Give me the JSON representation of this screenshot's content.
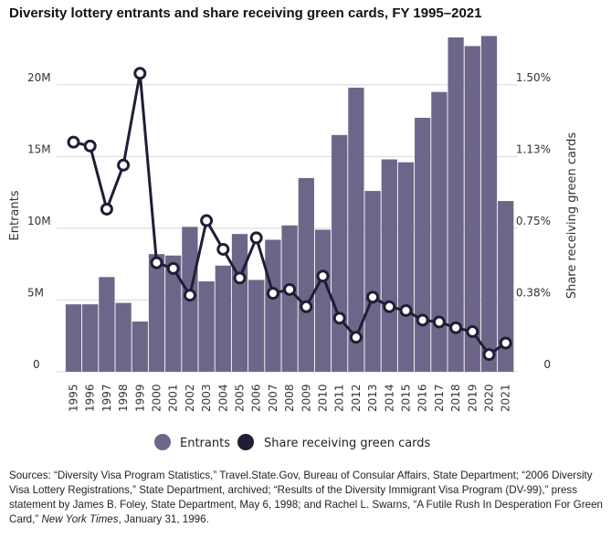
{
  "chart_data": {
    "type": "bar",
    "title": "Diversity lottery entrants and share receiving green cards, FY 1995–2021",
    "categories": [
      "1995",
      "1996",
      "1997",
      "1998",
      "1999",
      "2000",
      "2001",
      "2002",
      "2003",
      "2004",
      "2005",
      "2006",
      "2007",
      "2008",
      "2009",
      "2010",
      "2011",
      "2012",
      "2013",
      "2014",
      "2015",
      "2016",
      "2017",
      "2018",
      "2019",
      "2020",
      "2021"
    ],
    "ylabel": "Entrants",
    "y2label": "Share receiving green cards",
    "ylim": [
      0,
      24000000
    ],
    "y2lim": [
      0,
      1.8
    ],
    "yticks": [
      0,
      5000000,
      10000000,
      15000000,
      20000000
    ],
    "ytick_labels": [
      "0",
      "5M",
      "10M",
      "15M",
      "20M"
    ],
    "y2ticks": [
      0,
      0.375,
      0.75,
      1.125,
      1.5
    ],
    "y2tick_labels": [
      "0",
      "0.38%",
      "0.75%",
      "1.13%",
      "1.50%"
    ],
    "grid": true,
    "legend_position": "bottom",
    "series": [
      {
        "name": "Entrants",
        "type": "bar",
        "color": "#6e6689",
        "axis": "left",
        "values": [
          4700000,
          4700000,
          6600000,
          4800000,
          3500000,
          8200000,
          8100000,
          10100000,
          6300000,
          7400000,
          9600000,
          6400000,
          9200000,
          10200000,
          13500000,
          9900000,
          16500000,
          19800000,
          12600000,
          14800000,
          14600000,
          17700000,
          19500000,
          23300000,
          22700000,
          23400000,
          11900000
        ]
      },
      {
        "name": "Share receiving green cards",
        "type": "line",
        "color": "#231c35",
        "axis": "right",
        "values": [
          1.2,
          1.18,
          0.85,
          1.08,
          1.56,
          0.57,
          0.54,
          0.4,
          0.79,
          0.64,
          0.49,
          0.7,
          0.41,
          0.43,
          0.34,
          0.5,
          0.28,
          0.18,
          0.39,
          0.34,
          0.32,
          0.27,
          0.26,
          0.23,
          0.21,
          0.09,
          0.15
        ]
      }
    ]
  },
  "source": {
    "prefix": "Sources: “Diversity Visa Program Statistics,” Travel.State.Gov, Bureau of Consular Affairs, State Department; “2006 Diversity Visa Lottery Registrations,” State Department, archived; “Results of the Diversity Immigrant Visa Program (DV-99),” press statement by James B. Foley, State Department, May 6, 1998; and Rachel L. Swarns, “A Futile Rush In Desperation For Green Card,” ",
    "publication": "New York Times",
    "suffix": ", January 31, 1996."
  }
}
